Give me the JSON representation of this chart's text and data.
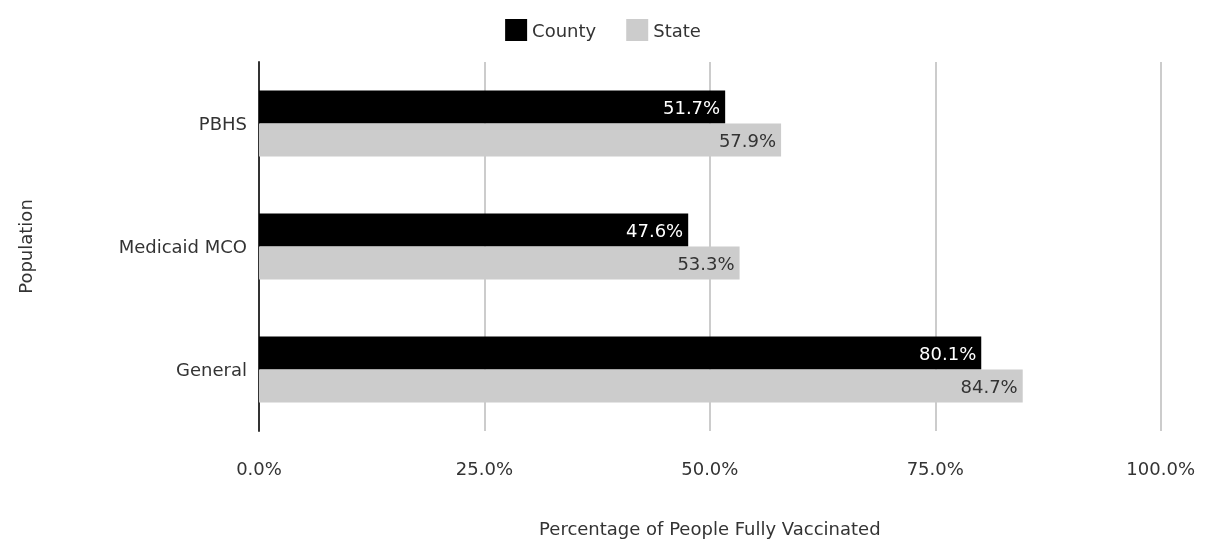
{
  "chart_data": {
    "type": "bar",
    "orientation": "horizontal",
    "xlabel": "Percentage of People Fully Vaccinated",
    "ylabel": "Population",
    "categories": [
      "PBHS",
      "Medicaid MCO",
      "General"
    ],
    "series": [
      {
        "name": "County",
        "color": "#000000",
        "values": [
          51.7,
          47.6,
          80.1
        ],
        "value_labels": [
          "51.7%",
          "47.6%",
          "80.1%"
        ]
      },
      {
        "name": "State",
        "color": "#cccccc",
        "values": [
          57.9,
          53.3,
          84.7
        ],
        "value_labels": [
          "57.9%",
          "53.3%",
          "84.7%"
        ]
      }
    ],
    "xlim": [
      0,
      100
    ],
    "xticks": [
      {
        "value": 0,
        "label": "0.0%"
      },
      {
        "value": 25,
        "label": "25.0%"
      },
      {
        "value": 50,
        "label": "50.0%"
      },
      {
        "value": 75,
        "label": "75.0%"
      },
      {
        "value": 100,
        "label": "100.0%"
      }
    ],
    "grid": "x",
    "legend": "top"
  }
}
